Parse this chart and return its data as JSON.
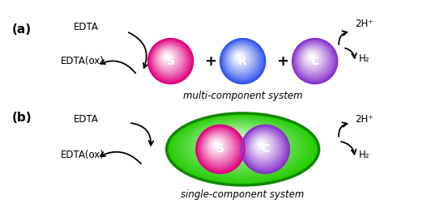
{
  "fig_width": 5.27,
  "fig_height": 2.62,
  "dpi": 100,
  "bg_color": "#ffffff",
  "panel_a_label": "(a)",
  "panel_b_label": "(b)",
  "edta_text": "EDTA",
  "edta_ox_text": "EDTA(ox)",
  "h2p_text": "2H⁺",
  "h2_text": "H₂",
  "plus_sign": "+",
  "system_a_label": "multi-component system",
  "system_b_label": "single-component system",
  "sphere_S_label": "S",
  "sphere_R_label": "R",
  "sphere_C_label": "C",
  "color_S": "#e0007f",
  "color_R": "#3355ee",
  "color_C": "#8833cc",
  "color_green": "#22cc00",
  "color_green_dark": "#118800"
}
